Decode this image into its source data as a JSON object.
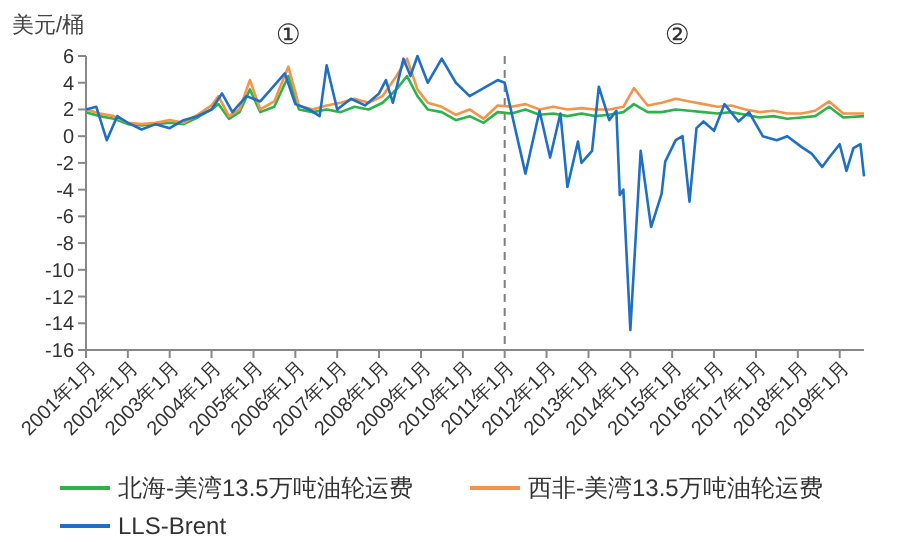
{
  "chart_data": {
    "type": "line",
    "ylabel": "美元/桶",
    "annotations": [
      "①",
      "②"
    ],
    "xlim": [
      "2001-01",
      "2019-08"
    ],
    "ylim": [
      -16,
      6
    ],
    "yticks": [
      -16,
      -14,
      -12,
      -10,
      -8,
      -6,
      -4,
      -2,
      0,
      2,
      4,
      6
    ],
    "xticks": [
      {
        "value": "2001-01",
        "label": "2001年1月"
      },
      {
        "value": "2002-01",
        "label": "2002年1月"
      },
      {
        "value": "2003-01",
        "label": "2003年1月"
      },
      {
        "value": "2004-01",
        "label": "2004年1月"
      },
      {
        "value": "2005-01",
        "label": "2005年1月"
      },
      {
        "value": "2006-01",
        "label": "2006年1月"
      },
      {
        "value": "2007-01",
        "label": "2007年1月"
      },
      {
        "value": "2008-01",
        "label": "2008年1月"
      },
      {
        "value": "2009-01",
        "label": "2009年1月"
      },
      {
        "value": "2010-01",
        "label": "2010年1月"
      },
      {
        "value": "2011-01",
        "label": "2011年1月"
      },
      {
        "value": "2012-01",
        "label": "2012年1月"
      },
      {
        "value": "2013-01",
        "label": "2013年1月"
      },
      {
        "value": "2014-01",
        "label": "2014年1月"
      },
      {
        "value": "2015-01",
        "label": "2015年1月"
      },
      {
        "value": "2016-01",
        "label": "2016年1月"
      },
      {
        "value": "2017-01",
        "label": "2017年1月"
      },
      {
        "value": "2018-01",
        "label": "2018年1月"
      },
      {
        "value": "2019-01",
        "label": "2019年1月"
      }
    ],
    "x": [
      "2001-01",
      "2001-05",
      "2001-09",
      "2002-01",
      "2002-05",
      "2002-09",
      "2003-01",
      "2003-05",
      "2003-09",
      "2004-01",
      "2004-03",
      "2004-06",
      "2004-09",
      "2004-12",
      "2005-03",
      "2005-07",
      "2005-11",
      "2006-02",
      "2006-06",
      "2006-10",
      "2007-02",
      "2007-06",
      "2007-10",
      "2008-02",
      "2008-06",
      "2008-09",
      "2008-12",
      "2009-03",
      "2009-07",
      "2009-11",
      "2010-03",
      "2010-07",
      "2010-11",
      "2011-03",
      "2011-07",
      "2011-11",
      "2012-03",
      "2012-07",
      "2012-11",
      "2013-03",
      "2013-07",
      "2013-11",
      "2014-02",
      "2014-06",
      "2014-10",
      "2015-02",
      "2015-06",
      "2015-10",
      "2016-02",
      "2016-06",
      "2016-10",
      "2017-02",
      "2017-06",
      "2017-10",
      "2018-02",
      "2018-06",
      "2018-10",
      "2019-02",
      "2019-08"
    ],
    "series": [
      {
        "name": "北海-美湾13.5万吨油轮运费",
        "color": "#2db34a",
        "values": [
          1.8,
          1.5,
          1.3,
          0.9,
          0.8,
          0.9,
          1.0,
          0.9,
          1.4,
          2.0,
          2.4,
          1.3,
          1.8,
          3.5,
          1.8,
          2.2,
          4.5,
          2.0,
          1.8,
          2.0,
          1.8,
          2.2,
          2.0,
          2.5,
          3.5,
          4.5,
          3.0,
          2.0,
          1.8,
          1.2,
          1.5,
          1.0,
          1.8,
          1.7,
          2.0,
          1.6,
          1.7,
          1.5,
          1.7,
          1.5,
          1.6,
          1.8,
          2.4,
          1.8,
          1.8,
          2.0,
          1.9,
          1.8,
          1.7,
          1.8,
          1.6,
          1.4,
          1.5,
          1.3,
          1.4,
          1.5,
          2.2,
          1.4,
          1.5
        ]
      },
      {
        "name": "西非-美湾13.5万吨油轮运费",
        "color": "#f4944a",
        "values": [
          2.0,
          1.7,
          1.5,
          1.0,
          0.9,
          1.0,
          1.2,
          1.0,
          1.6,
          2.3,
          3.0,
          1.5,
          2.0,
          4.2,
          2.0,
          2.6,
          5.2,
          2.3,
          2.0,
          2.3,
          2.5,
          2.8,
          2.5,
          3.0,
          4.5,
          5.8,
          3.5,
          2.5,
          2.2,
          1.6,
          2.0,
          1.3,
          2.3,
          2.2,
          2.4,
          2.0,
          2.2,
          2.0,
          2.1,
          2.0,
          2.0,
          2.2,
          3.6,
          2.3,
          2.5,
          2.8,
          2.6,
          2.4,
          2.2,
          2.3,
          2.0,
          1.8,
          1.9,
          1.7,
          1.7,
          1.9,
          2.6,
          1.7,
          1.7
        ]
      },
      {
        "name": "LLS-Brent",
        "color": "#1f6fc5",
        "x": [
          "2001-01",
          "2001-04",
          "2001-07",
          "2001-10",
          "2002-01",
          "2002-05",
          "2002-09",
          "2003-01",
          "2003-05",
          "2003-09",
          "2004-01",
          "2004-04",
          "2004-07",
          "2004-11",
          "2005-03",
          "2005-06",
          "2005-10",
          "2006-01",
          "2006-05",
          "2006-08",
          "2006-10",
          "2007-01",
          "2007-05",
          "2007-09",
          "2008-01",
          "2008-03",
          "2008-05",
          "2008-08",
          "2008-10",
          "2008-12",
          "2009-03",
          "2009-07",
          "2009-11",
          "2010-03",
          "2010-07",
          "2010-11",
          "2011-01",
          "2011-07",
          "2011-10",
          "2011-11",
          "2012-02",
          "2012-05",
          "2012-07",
          "2012-10",
          "2012-11",
          "2013-02",
          "2013-04",
          "2013-07",
          "2013-09",
          "2013-10",
          "2013-11",
          "2014-01",
          "2014-04",
          "2014-07",
          "2014-10",
          "2014-11",
          "2015-02",
          "2015-04",
          "2015-06",
          "2015-08",
          "2015-10",
          "2016-01",
          "2016-04",
          "2016-08",
          "2016-11",
          "2017-03",
          "2017-07",
          "2017-10",
          "2018-02",
          "2018-05",
          "2018-08",
          "2018-10",
          "2019-01",
          "2019-03",
          "2019-05",
          "2019-07",
          "2019-08"
        ],
        "values": [
          2.0,
          2.2,
          -0.3,
          1.5,
          1.0,
          0.5,
          0.9,
          0.6,
          1.2,
          1.5,
          2.0,
          3.2,
          1.8,
          3.0,
          2.6,
          3.5,
          4.7,
          2.4,
          2.0,
          1.5,
          5.3,
          2.0,
          2.8,
          2.3,
          3.2,
          4.2,
          2.5,
          5.8,
          4.5,
          6.0,
          4.0,
          5.8,
          4.0,
          3.0,
          3.6,
          4.2,
          4.0,
          -2.8,
          0.7,
          1.9,
          -1.6,
          1.7,
          -3.8,
          -0.4,
          -2.0,
          -1.1,
          3.7,
          1.2,
          1.9,
          -4.4,
          -4.0,
          -14.5,
          -1.1,
          -6.8,
          -4.3,
          -1.9,
          -0.3,
          0.0,
          -4.9,
          0.6,
          1.1,
          0.4,
          2.4,
          1.1,
          1.8,
          0.0,
          -0.3,
          0.0,
          -0.8,
          -1.3,
          -2.3,
          -1.6,
          -0.6,
          -2.6,
          -0.9,
          -0.6,
          -3.0
        ]
      }
    ],
    "ref_lines": [
      {
        "axis": "x",
        "value": "2011-01",
        "color": "#7f7f7f",
        "line_style": "dashed"
      }
    ],
    "legend": "bottom",
    "grid": false,
    "line_style": "solid"
  }
}
